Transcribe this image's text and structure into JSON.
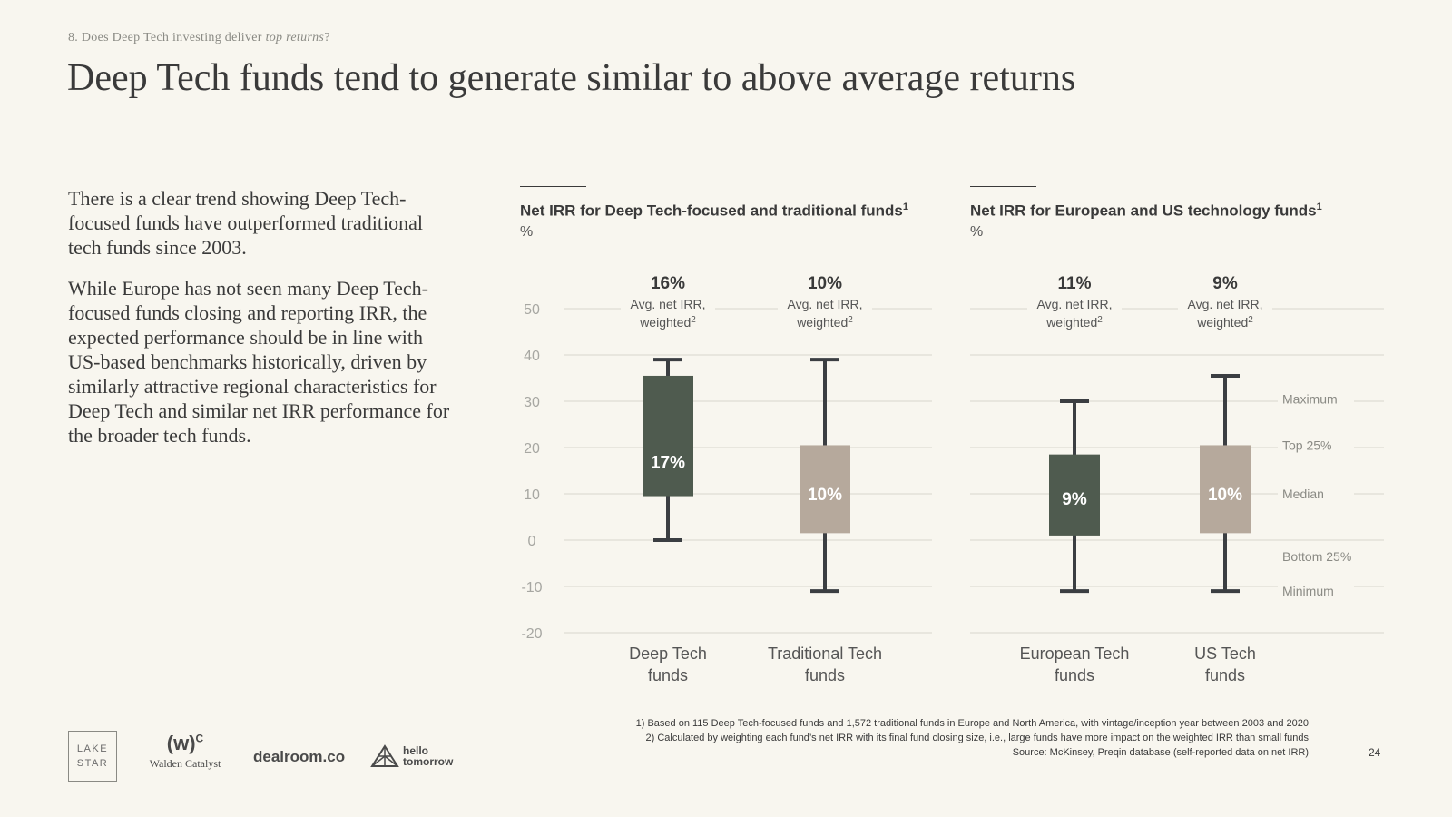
{
  "header": {
    "kicker_prefix": "8. Does Deep Tech investing deliver ",
    "kicker_emph": "top returns",
    "kicker_suffix": "?",
    "title": "Deep Tech funds tend to generate similar to above average returns"
  },
  "body": {
    "paragraph1": "There is a clear trend showing Deep Tech-focused funds have outperformed traditional tech funds since 2003.",
    "paragraph2": "While Europe has not seen many Deep Tech-focused funds closing and reporting IRR, the expected performance should be in line with US-based benchmarks historically, driven by similarly attractive regional characteristics for Deep Tech and similar net IRR performance for the broader tech funds."
  },
  "legend": {
    "maximum": "Maximum",
    "top25": "Top 25%",
    "median": "Median",
    "bottom25": "Bottom 25%",
    "minimum": "Minimum"
  },
  "colors": {
    "dark_green": "#4f5b4f",
    "taupe": "#b6a99c",
    "whisker": "#3b3e42",
    "grid": "#d9d6cd"
  },
  "chart_data": [
    {
      "type": "box",
      "title": "Net IRR for Deep Tech-focused and traditional funds",
      "title_sup": "1",
      "unit": "%",
      "ylim": [
        -20,
        50
      ],
      "yticks": [
        50,
        40,
        30,
        20,
        10,
        0,
        -10,
        -20
      ],
      "avg_label": "Avg. net IRR,",
      "avg_label2": "weighted",
      "avg_sup": "2",
      "series": [
        {
          "name": "Deep Tech funds",
          "label_line1": "Deep Tech",
          "label_line2": "funds",
          "min": 0,
          "q1": 9.5,
          "median": 17,
          "q3": 35.5,
          "max": 39,
          "median_label": "17%",
          "avg": "16%",
          "color": "dark_green"
        },
        {
          "name": "Traditional Tech funds",
          "label_line1": "Traditional Tech",
          "label_line2": "funds",
          "min": -11,
          "q1": 1.5,
          "median": 10,
          "q3": 20.5,
          "max": 39,
          "median_label": "10%",
          "avg": "10%",
          "color": "taupe"
        }
      ]
    },
    {
      "type": "box",
      "title": "Net IRR for European and US technology funds",
      "title_sup": "1",
      "unit": "%",
      "ylim": [
        -20,
        50
      ],
      "avg_label": "Avg. net IRR,",
      "avg_label2": "weighted",
      "avg_sup": "2",
      "series": [
        {
          "name": "European Tech funds",
          "label_line1": "European Tech",
          "label_line2": "funds",
          "min": -11,
          "q1": 1,
          "median": 9,
          "q3": 18.5,
          "max": 30,
          "median_label": "9%",
          "avg": "11%",
          "color": "dark_green"
        },
        {
          "name": "US Tech funds",
          "label_line1": "US Tech",
          "label_line2": "funds",
          "min": -11,
          "q1": 1.5,
          "median": 10,
          "q3": 20.5,
          "max": 35.5,
          "median_label": "10%",
          "avg": "9%",
          "color": "taupe"
        }
      ]
    }
  ],
  "footnotes": {
    "note1": "1) Based on 115 Deep Tech-focused funds and 1,572 traditional funds in Europe and North America, with vintage/inception year between 2003 and 2020",
    "note2": "2) Calculated by weighting each fund’s net IRR with its final fund closing size, i.e., large funds have more impact on the weighted IRR than small funds",
    "source": "Source: McKinsey, Preqin database (self-reported data on net IRR)"
  },
  "page_number": "24",
  "logos": {
    "lake_line1": "LAKE",
    "lake_line2": "STAR",
    "walden_mark": "(w)",
    "walden_sup": "C",
    "walden_name": "Walden Catalyst",
    "dealroom": "dealroom.co",
    "hello_line1": "hello",
    "hello_line2": "tomorrow"
  }
}
